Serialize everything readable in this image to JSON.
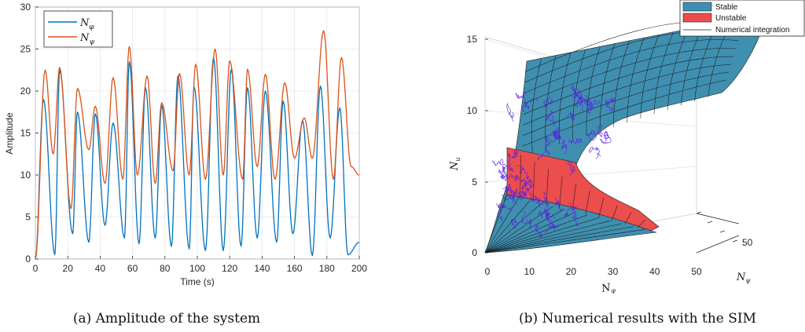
{
  "chart_data": [
    {
      "type": "line",
      "title": "",
      "xlabel": "Time (s)",
      "ylabel": "Amplitude",
      "xlim": [
        0,
        200
      ],
      "ylim": [
        0,
        30
      ],
      "xticks": [
        "0",
        "20",
        "40",
        "60",
        "80",
        "100",
        "120",
        "140",
        "160",
        "180",
        "200"
      ],
      "yticks": [
        "0",
        "5",
        "10",
        "15",
        "20",
        "25",
        "30"
      ],
      "grid": true,
      "legend_position": "top-left",
      "series": [
        {
          "name": "N",
          "subscript": "φ",
          "color": "#0072BD",
          "x": [
            0,
            5,
            12,
            15,
            23,
            26,
            33,
            37,
            43,
            48,
            55,
            58,
            64,
            68,
            74,
            78,
            84,
            88,
            95,
            98,
            105,
            110,
            116,
            121,
            127,
            131,
            137,
            142,
            149,
            153,
            159,
            165,
            171,
            176,
            182,
            188,
            193,
            200
          ],
          "y": [
            0,
            19,
            0.5,
            22.5,
            3,
            17.5,
            2,
            17.3,
            4,
            16.2,
            2.5,
            23.5,
            1.8,
            20.4,
            2.5,
            18.3,
            1.5,
            21.8,
            1.2,
            20.5,
            1,
            24,
            1,
            22.6,
            1.5,
            20.4,
            2.5,
            20,
            2,
            18.8,
            3,
            16.5,
            0.4,
            20.6,
            2.5,
            18,
            0.5,
            2
          ]
        },
        {
          "name": "N",
          "subscript": "ψ",
          "color": "#D95319",
          "x": [
            0,
            6,
            11,
            15,
            22,
            26,
            33,
            37,
            43,
            48,
            54,
            58,
            63,
            69,
            74,
            78,
            85,
            89,
            95,
            99,
            105,
            111,
            116,
            120,
            128,
            131,
            137,
            142,
            148,
            154,
            160,
            166,
            171,
            178,
            184,
            189,
            195,
            200
          ],
          "y": [
            0,
            22.5,
            12.5,
            22.8,
            6,
            20.3,
            13,
            18.2,
            9,
            21.6,
            9.5,
            25.3,
            10,
            21.8,
            9,
            18.6,
            10.5,
            22.1,
            10,
            23.2,
            9.5,
            25,
            10,
            23.6,
            9.5,
            22.6,
            11,
            22,
            9.5,
            21,
            12,
            16.8,
            12,
            27.2,
            9.5,
            24,
            11,
            10
          ]
        }
      ],
      "caption": "(a) Amplitude of the system"
    },
    {
      "type": "surface3d",
      "title": "",
      "xlabel": "N",
      "xlabel_sub": "φ",
      "ylabel": "N",
      "ylabel_sub": "ψ",
      "zlabel": "N",
      "zlabel_sub": "u",
      "xlim": [
        0,
        50
      ],
      "ylim": [
        0,
        50
      ],
      "zlim": [
        0,
        15
      ],
      "xticks": [
        "0",
        "10",
        "20",
        "30",
        "40",
        "50"
      ],
      "yticks": [
        "50"
      ],
      "zticks": [
        "0",
        "5",
        "10",
        "15"
      ],
      "legend_position": "top-right",
      "legend": [
        {
          "label": "Stable",
          "color": "#3d8fb2"
        },
        {
          "label": "Unstable",
          "color": "#ee4c4c"
        },
        {
          "label": "Numerical integration",
          "color": "#222222"
        }
      ],
      "trajectory_color": "#5a1ee6",
      "caption": "(b) Numerical results with the SIM"
    }
  ]
}
